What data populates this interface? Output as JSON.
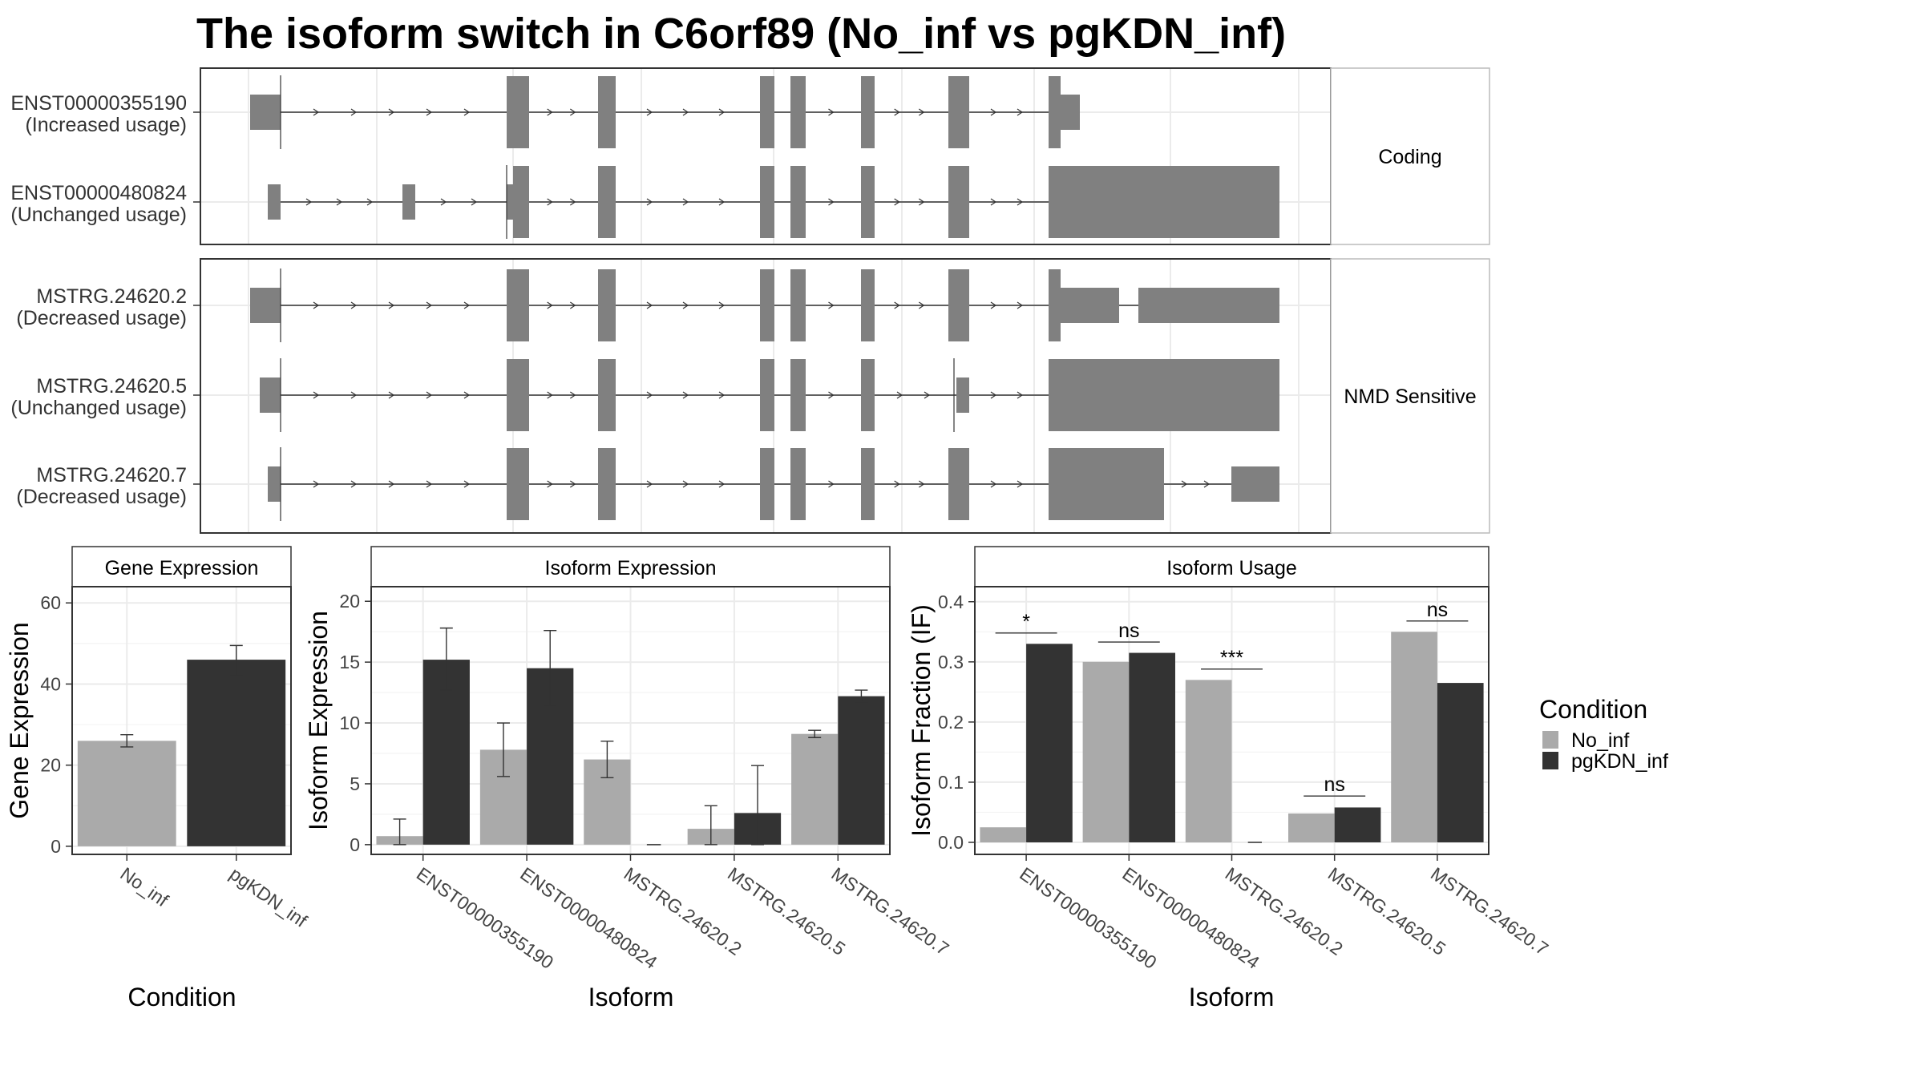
{
  "title": "The isoform switch in C6orf89 (No_inf vs pgKDN_inf)",
  "colors": {
    "exon": "#808080",
    "no_inf": "#aaaaaa",
    "pgkdn_inf": "#333333",
    "grid": "#ebebeb",
    "panel_border": "#333333",
    "strip_border": "#333333"
  },
  "transcripts": {
    "groups": [
      {
        "label": "Coding",
        "isoforms": [
          {
            "id": "ENST00000355190",
            "usage": "(Increased usage)"
          },
          {
            "id": "ENST00000480824",
            "usage": "(Unchanged usage)"
          }
        ]
      },
      {
        "label": "NMD Sensitive",
        "isoforms": [
          {
            "id": "MSTRG.24620.2",
            "usage": "(Decreased usage)"
          },
          {
            "id": "MSTRG.24620.5",
            "usage": "(Unchanged usage)"
          },
          {
            "id": "MSTRG.24620.7",
            "usage": "(Decreased usage)"
          }
        ]
      }
    ]
  },
  "legend": {
    "title": "Condition",
    "items": [
      {
        "label": "No_inf",
        "color": "#aaaaaa"
      },
      {
        "label": "pgKDN_inf",
        "color": "#333333"
      }
    ]
  },
  "chart_data": [
    {
      "type": "bar",
      "title": "Gene Expression",
      "xlabel": "Condition",
      "ylabel": "Gene Expression",
      "categories": [
        "No_inf",
        "pgKDN_inf"
      ],
      "values": [
        26,
        46
      ],
      "errors": [
        [
          24.5,
          27.5
        ],
        [
          42,
          49.5
        ]
      ],
      "ylim": [
        -2,
        64
      ],
      "yticks": [
        0,
        20,
        40,
        60
      ],
      "colors": [
        "#aaaaaa",
        "#333333"
      ]
    },
    {
      "type": "bar",
      "title": "Isoform Expression",
      "xlabel": "Isoform",
      "ylabel": "Isoform Expression",
      "categories": [
        "ENST00000355190",
        "ENST00000480824",
        "MSTRG.24620.2",
        "MSTRG.24620.5",
        "MSTRG.24620.7"
      ],
      "series": [
        {
          "name": "No_inf",
          "values": [
            0.7,
            7.8,
            7.0,
            1.3,
            9.1
          ],
          "errors": [
            [
              0,
              2.1
            ],
            [
              5.6,
              10.0
            ],
            [
              5.5,
              8.5
            ],
            [
              0,
              3.2
            ],
            [
              8.8,
              9.4
            ]
          ]
        },
        {
          "name": "pgKDN_inf",
          "values": [
            15.2,
            14.5,
            0,
            2.6,
            12.2
          ],
          "errors": [
            [
              12.7,
              17.8
            ],
            [
              11.4,
              17.6
            ],
            [
              0,
              0
            ],
            [
              0,
              6.5
            ],
            [
              11.7,
              12.7
            ]
          ]
        }
      ],
      "ylim": [
        -0.8,
        21.2
      ],
      "yticks": [
        0,
        5,
        10,
        15,
        20
      ]
    },
    {
      "type": "bar",
      "title": "Isoform Usage",
      "xlabel": "Isoform",
      "ylabel": "Isoform Fraction (IF)",
      "categories": [
        "ENST00000355190",
        "ENST00000480824",
        "MSTRG.24620.2",
        "MSTRG.24620.5",
        "MSTRG.24620.7"
      ],
      "series": [
        {
          "name": "No_inf",
          "values": [
            0.025,
            0.3,
            0.27,
            0.048,
            0.35
          ]
        },
        {
          "name": "pgKDN_inf",
          "values": [
            0.33,
            0.315,
            0,
            0.058,
            0.265
          ]
        }
      ],
      "significance": [
        {
          "label": "*",
          "y": 0.348
        },
        {
          "label": "ns",
          "y": 0.333
        },
        {
          "label": "***",
          "y": 0.288
        },
        {
          "label": "ns",
          "y": 0.077
        },
        {
          "label": "ns",
          "y": 0.368
        }
      ],
      "ylim": [
        -0.02,
        0.425
      ],
      "yticks": [
        0.0,
        0.1,
        0.2,
        0.3,
        0.4
      ],
      "ytick_labels": [
        "0.0",
        "0.1",
        "0.2",
        "0.3",
        "0.4"
      ]
    }
  ]
}
